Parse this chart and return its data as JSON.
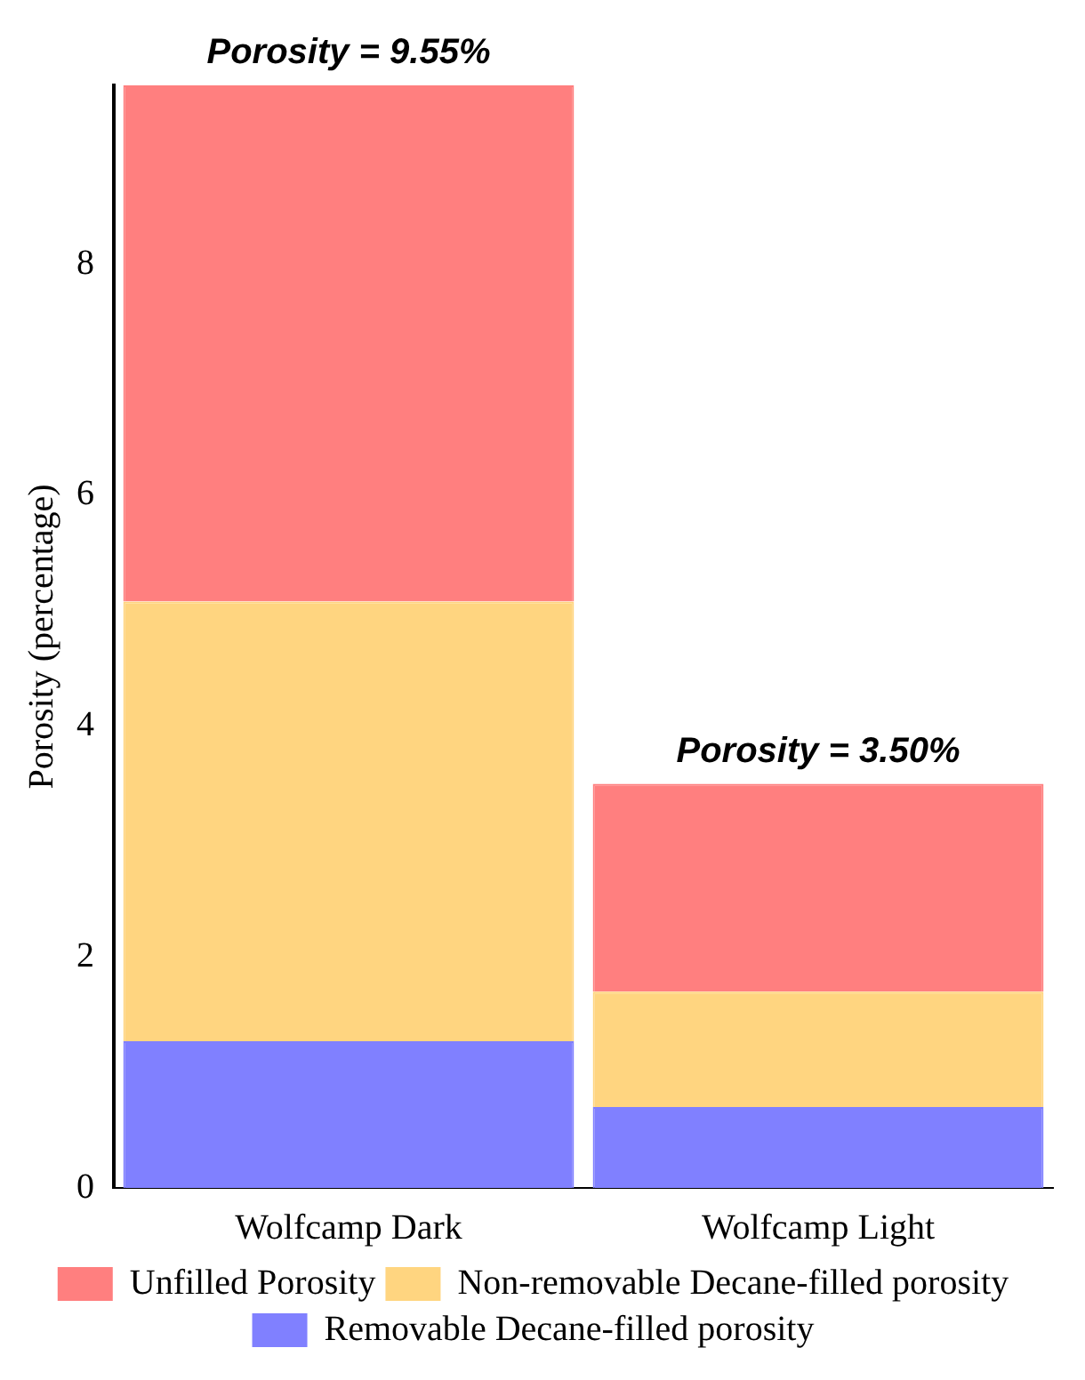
{
  "chart_data": {
    "type": "bar",
    "stacked": true,
    "ylabel": "Porosity (percentage)",
    "categories": [
      "Wolfcamp Dark",
      "Wolfcamp Light"
    ],
    "series": [
      {
        "name": "Removable Decane-filled porosity",
        "color": "#8080ff",
        "values": [
          1.27,
          0.7
        ]
      },
      {
        "name": "Non-removable Decane-filled porosity",
        "color": "#ffd580",
        "values": [
          3.81,
          1.0
        ]
      },
      {
        "name": "Unfilled Porosity",
        "color": "#ff7f7f",
        "values": [
          4.47,
          1.8
        ]
      }
    ],
    "ylim": [
      0,
      9.55
    ],
    "yticks": [
      0,
      2,
      4,
      6,
      8
    ],
    "grid": false,
    "legend": "bottom",
    "annotations": [
      {
        "text": "Porosity = 9.55%",
        "x": "Wolfcamp Dark",
        "y": 9.55
      },
      {
        "text": "Porosity = 3.50%",
        "x": "Wolfcamp Light",
        "y": 3.5
      }
    ]
  }
}
